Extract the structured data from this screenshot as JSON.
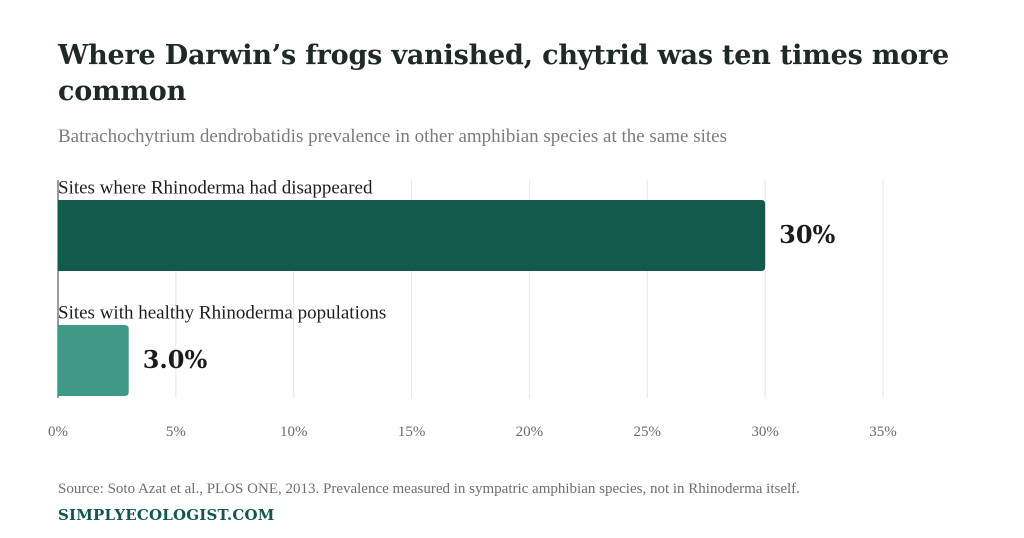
{
  "header": {
    "title": "Where Darwin’s frogs vanished, chytrid was ten times more common",
    "subtitle": "Batrachochytrium dendrobatidis prevalence in other amphibian species at the same sites"
  },
  "footer": {
    "source": "Source: Soto Azat et al., PLOS ONE, 2013. Prevalence measured in sympatric amphibian species, not in Rhinoderma itself.",
    "brand": "SIMPLYECOLOGIST.COM"
  },
  "chart_data": {
    "type": "bar",
    "orientation": "horizontal",
    "categories": [
      "Sites where Rhinoderma had disappeared",
      "Sites with healthy Rhinoderma populations"
    ],
    "values": [
      30,
      3.0
    ],
    "value_labels": [
      "30%",
      "3.0%"
    ],
    "colors": [
      "#135a4d",
      "#3e9a87"
    ],
    "xlim": [
      0,
      35
    ],
    "x_ticks": [
      0,
      5,
      10,
      15,
      20,
      25,
      30,
      35
    ],
    "x_tick_labels": [
      "0%",
      "5%",
      "10%",
      "15%",
      "20%",
      "25%",
      "30%",
      "35%"
    ],
    "grid": true
  }
}
